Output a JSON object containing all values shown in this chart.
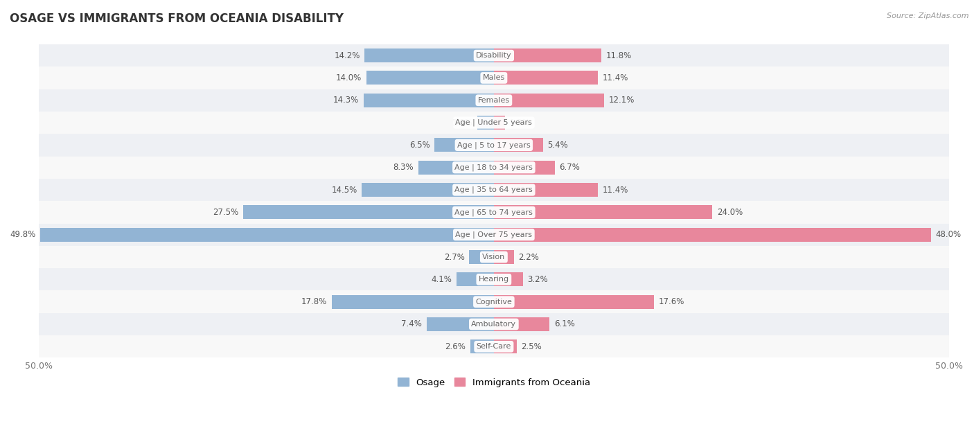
{
  "title": "OSAGE VS IMMIGRANTS FROM OCEANIA DISABILITY",
  "source": "Source: ZipAtlas.com",
  "categories": [
    "Disability",
    "Males",
    "Females",
    "Age | Under 5 years",
    "Age | 5 to 17 years",
    "Age | 18 to 34 years",
    "Age | 35 to 64 years",
    "Age | 65 to 74 years",
    "Age | Over 75 years",
    "Vision",
    "Hearing",
    "Cognitive",
    "Ambulatory",
    "Self-Care"
  ],
  "osage_values": [
    14.2,
    14.0,
    14.3,
    1.8,
    6.5,
    8.3,
    14.5,
    27.5,
    49.8,
    2.7,
    4.1,
    17.8,
    7.4,
    2.6
  ],
  "oceania_values": [
    11.8,
    11.4,
    12.1,
    1.2,
    5.4,
    6.7,
    11.4,
    24.0,
    48.0,
    2.2,
    3.2,
    17.6,
    6.1,
    2.5
  ],
  "osage_color": "#92b4d4",
  "oceania_color": "#e8879c",
  "axis_limit": 50.0,
  "bar_height": 0.62,
  "label_fontsize": 8.5,
  "title_fontsize": 12,
  "category_fontsize": 8.0,
  "bg_row_color_odd": "#eef0f4",
  "bg_row_color_even": "#f8f8f8",
  "legend_osage": "Osage",
  "legend_oceania": "Immigrants from Oceania"
}
